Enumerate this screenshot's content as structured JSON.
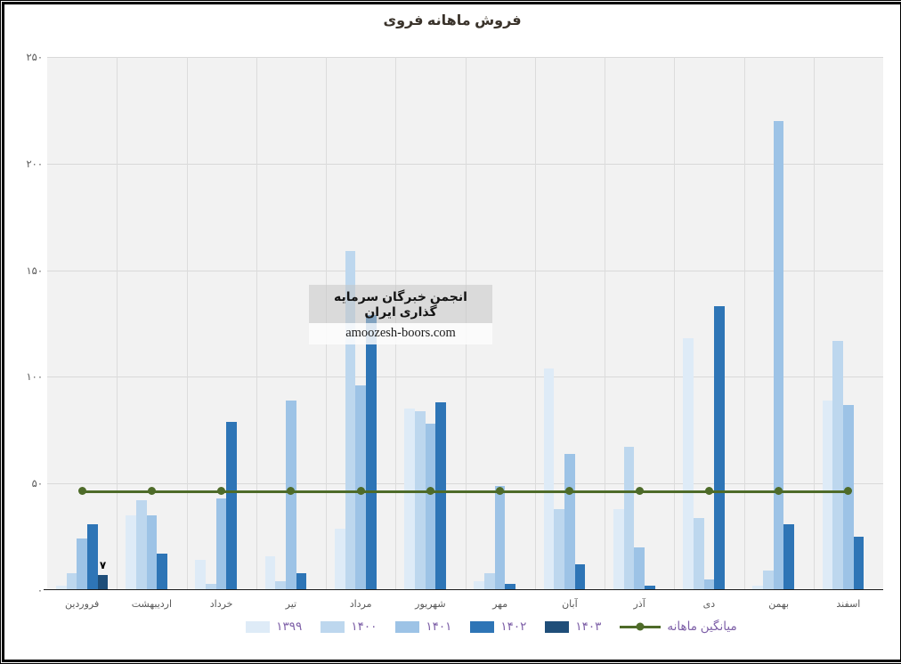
{
  "title": "فروش ماهانه فروی",
  "annotation": {
    "line1": "انجمن خبرگان سرمایه گذاری ایران",
    "line2": "amoozesh-boors.com"
  },
  "colors": {
    "plot_background": "#f2f2f2",
    "gridline": "#d9d9d9",
    "axis_text": "#595959",
    "legend_text": "#7d5fa7",
    "average_line": "#4e6b29",
    "data_label": "#000000"
  },
  "chart_data": {
    "type": "bar",
    "categories": [
      "فروردین",
      "اردیبهشت",
      "خرداد",
      "تیر",
      "مرداد",
      "شهریور",
      "مهر",
      "آبان",
      "آذر",
      "دی",
      "بهمن",
      "اسفند"
    ],
    "series": [
      {
        "name": "۱۳۹۹",
        "color": "#deebf7",
        "values": [
          2,
          35,
          14,
          16,
          29,
          85,
          4,
          104,
          38,
          118,
          2,
          89
        ]
      },
      {
        "name": "۱۴۰۰",
        "color": "#bdd7ee",
        "values": [
          8,
          42,
          3,
          4,
          159,
          84,
          8,
          38,
          67,
          34,
          9,
          117
        ]
      },
      {
        "name": "۱۴۰۱",
        "color": "#9dc3e6",
        "values": [
          24,
          35,
          43,
          89,
          96,
          78,
          49,
          64,
          20,
          5,
          220,
          87
        ]
      },
      {
        "name": "۱۴۰۲",
        "color": "#2e75b6",
        "values": [
          31,
          17,
          79,
          8,
          129,
          88,
          3,
          12,
          2,
          133,
          31,
          25
        ]
      },
      {
        "name": "۱۴۰۳",
        "color": "#1f4e79",
        "values": [
          7,
          null,
          null,
          null,
          null,
          null,
          null,
          null,
          null,
          null,
          null,
          null
        ]
      }
    ],
    "average_line": {
      "name": "میانگین ماهانه",
      "value": 46.5,
      "color": "#4e6b29"
    },
    "data_labels": [
      {
        "series_index": 4,
        "category_index": 0,
        "text": "۷"
      }
    ],
    "ylim": [
      0,
      250
    ],
    "yticks": [
      {
        "value": 0,
        "label": "۰"
      },
      {
        "value": 50,
        "label": "۵۰"
      },
      {
        "value": 100,
        "label": "۱۰۰"
      },
      {
        "value": 150,
        "label": "۱۵۰"
      },
      {
        "value": 200,
        "label": "۲۰۰"
      },
      {
        "value": 250,
        "label": "۲۵۰"
      }
    ],
    "grid": true,
    "legend_position": "bottom"
  }
}
